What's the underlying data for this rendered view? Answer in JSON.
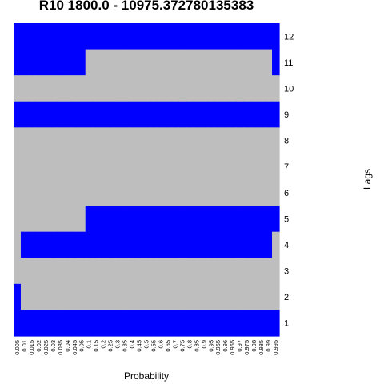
{
  "chart_data": {
    "type": "heatmap",
    "title": "R10 1800.0 - 10975.372780135383",
    "xlabel": "Probability",
    "ylabel": "Lags",
    "x_ticks": [
      "0.005",
      "0.01",
      "0.015",
      "0.02",
      "0.025",
      "0.03",
      "0.035",
      "0.04",
      "0.045",
      "0.05",
      "0.1",
      "0.15",
      "0.2",
      "0.25",
      "0.3",
      "0.35",
      "0.4",
      "0.45",
      "0.5",
      "0.55",
      "0.6",
      "0.65",
      "0.7",
      "0.75",
      "0.8",
      "0.85",
      "0.9",
      "0.95",
      "0.955",
      "0.96",
      "0.965",
      "0.97",
      "0.975",
      "0.98",
      "0.985",
      "0.99",
      "0.995"
    ],
    "y_ticks": [
      "12",
      "11",
      "10",
      "9",
      "8",
      "7",
      "6",
      "5",
      "4",
      "3",
      "2",
      "1"
    ],
    "colors": {
      "selected": "#0000ff",
      "not_selected": "#bebebe"
    },
    "matrix": [
      [
        1,
        1,
        1,
        1,
        1,
        1,
        1,
        1,
        1,
        1,
        1,
        1,
        1,
        1,
        1,
        1,
        1,
        1,
        1,
        1,
        1,
        1,
        1,
        1,
        1,
        1,
        1,
        1,
        1,
        1,
        1,
        1,
        1,
        1,
        1,
        1,
        1
      ],
      [
        1,
        1,
        1,
        1,
        1,
        1,
        1,
        1,
        1,
        1,
        0,
        0,
        0,
        0,
        0,
        0,
        0,
        0,
        0,
        0,
        0,
        0,
        0,
        0,
        0,
        0,
        0,
        0,
        0,
        0,
        0,
        0,
        0,
        0,
        0,
        0,
        1
      ],
      [
        0,
        0,
        0,
        0,
        0,
        0,
        0,
        0,
        0,
        0,
        0,
        0,
        0,
        0,
        0,
        0,
        0,
        0,
        0,
        0,
        0,
        0,
        0,
        0,
        0,
        0,
        0,
        0,
        0,
        0,
        0,
        0,
        0,
        0,
        0,
        0,
        0
      ],
      [
        1,
        1,
        1,
        1,
        1,
        1,
        1,
        1,
        1,
        1,
        1,
        1,
        1,
        1,
        1,
        1,
        1,
        1,
        1,
        1,
        1,
        1,
        1,
        1,
        1,
        1,
        1,
        1,
        1,
        1,
        1,
        1,
        1,
        1,
        1,
        1,
        1
      ],
      [
        0,
        0,
        0,
        0,
        0,
        0,
        0,
        0,
        0,
        0,
        0,
        0,
        0,
        0,
        0,
        0,
        0,
        0,
        0,
        0,
        0,
        0,
        0,
        0,
        0,
        0,
        0,
        0,
        0,
        0,
        0,
        0,
        0,
        0,
        0,
        0,
        0
      ],
      [
        0,
        0,
        0,
        0,
        0,
        0,
        0,
        0,
        0,
        0,
        0,
        0,
        0,
        0,
        0,
        0,
        0,
        0,
        0,
        0,
        0,
        0,
        0,
        0,
        0,
        0,
        0,
        0,
        0,
        0,
        0,
        0,
        0,
        0,
        0,
        0,
        0
      ],
      [
        0,
        0,
        0,
        0,
        0,
        0,
        0,
        0,
        0,
        0,
        0,
        0,
        0,
        0,
        0,
        0,
        0,
        0,
        0,
        0,
        0,
        0,
        0,
        0,
        0,
        0,
        0,
        0,
        0,
        0,
        0,
        0,
        0,
        0,
        0,
        0,
        0
      ],
      [
        0,
        0,
        0,
        0,
        0,
        0,
        0,
        0,
        0,
        0,
        1,
        1,
        1,
        1,
        1,
        1,
        1,
        1,
        1,
        1,
        1,
        1,
        1,
        1,
        1,
        1,
        1,
        1,
        1,
        1,
        1,
        1,
        1,
        1,
        1,
        1,
        1
      ],
      [
        0,
        1,
        1,
        1,
        1,
        1,
        1,
        1,
        1,
        1,
        1,
        1,
        1,
        1,
        1,
        1,
        1,
        1,
        1,
        1,
        1,
        1,
        1,
        1,
        1,
        1,
        1,
        1,
        1,
        1,
        1,
        1,
        1,
        1,
        1,
        1,
        0
      ],
      [
        0,
        0,
        0,
        0,
        0,
        0,
        0,
        0,
        0,
        0,
        0,
        0,
        0,
        0,
        0,
        0,
        0,
        0,
        0,
        0,
        0,
        0,
        0,
        0,
        0,
        0,
        0,
        0,
        0,
        0,
        0,
        0,
        0,
        0,
        0,
        0,
        0
      ],
      [
        1,
        0,
        0,
        0,
        0,
        0,
        0,
        0,
        0,
        0,
        0,
        0,
        0,
        0,
        0,
        0,
        0,
        0,
        0,
        0,
        0,
        0,
        0,
        0,
        0,
        0,
        0,
        0,
        0,
        0,
        0,
        0,
        0,
        0,
        0,
        0,
        0
      ],
      [
        1,
        1,
        1,
        1,
        1,
        1,
        1,
        1,
        1,
        1,
        1,
        1,
        1,
        1,
        1,
        1,
        1,
        1,
        1,
        1,
        1,
        1,
        1,
        1,
        1,
        1,
        1,
        1,
        1,
        1,
        1,
        1,
        1,
        1,
        1,
        1,
        1
      ]
    ]
  }
}
